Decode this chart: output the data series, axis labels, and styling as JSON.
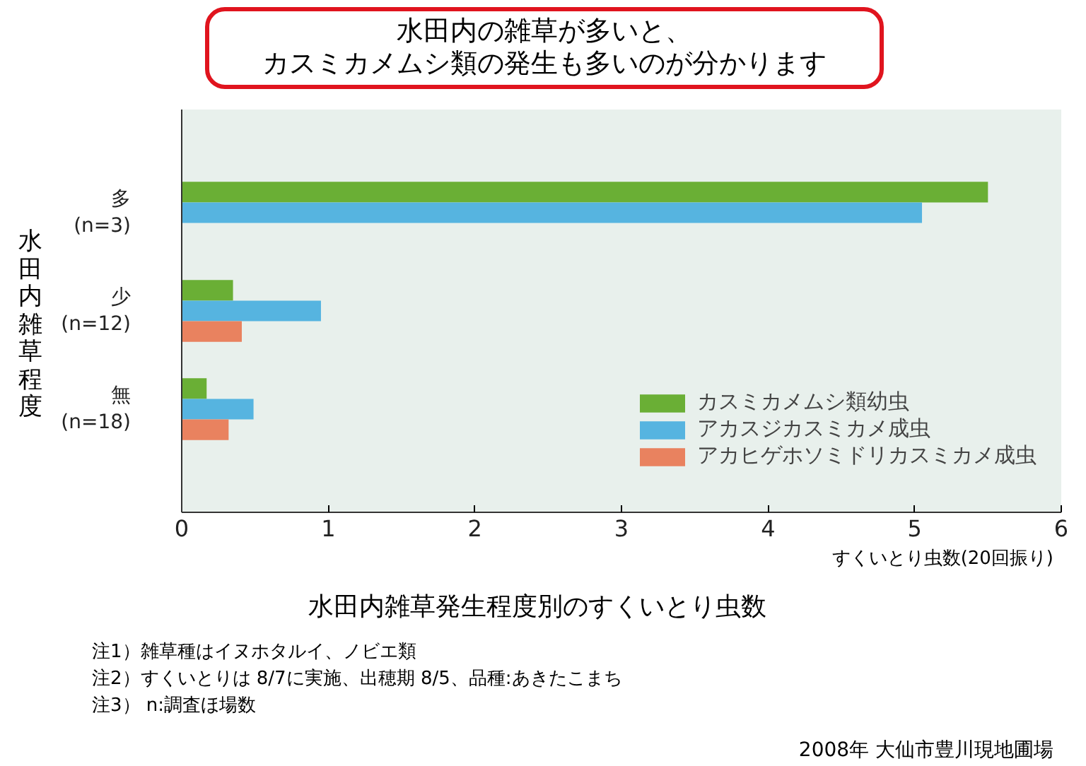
{
  "chart_data": {
    "type": "bar",
    "orientation": "horizontal",
    "title": "水田内雑草発生程度別のすくいとり虫数",
    "xlabel": "すくいとり虫数(20回振り)",
    "ylabel": "水田内雑草程度",
    "categories": [
      "多\n(n=3)",
      "少\n(n=12)",
      "無\n(n=18)"
    ],
    "series": [
      {
        "name": "カスミカメムシ類幼虫",
        "color": "#6aaf35",
        "values": [
          5.5,
          0.35,
          0.17
        ]
      },
      {
        "name": "アカスジカスミカメ成虫",
        "color": "#56b4e0",
        "values": [
          5.05,
          0.95,
          0.49
        ]
      },
      {
        "name": "アカヒゲホソミドリカスミカメ成虫",
        "color": "#e9825f",
        "values": [
          null,
          0.41,
          0.32
        ]
      }
    ],
    "xlim": [
      0,
      6
    ],
    "xticks": [
      0,
      1,
      2,
      3,
      4,
      5,
      6
    ],
    "grid": false,
    "legend": "right",
    "annotations": [
      "水田内の雑草が多いと、カスミカメムシ類の発生も多いのが分かります",
      "注1）雑草種はイヌホタルイ、ノビエ類",
      "注2）すくいとりは 8/7に実施、出穂期 8/5、品種:あきたこまち",
      "注3）  n:調査ほ場数",
      "2008年 大仙市豊川現地圃場"
    ]
  }
}
